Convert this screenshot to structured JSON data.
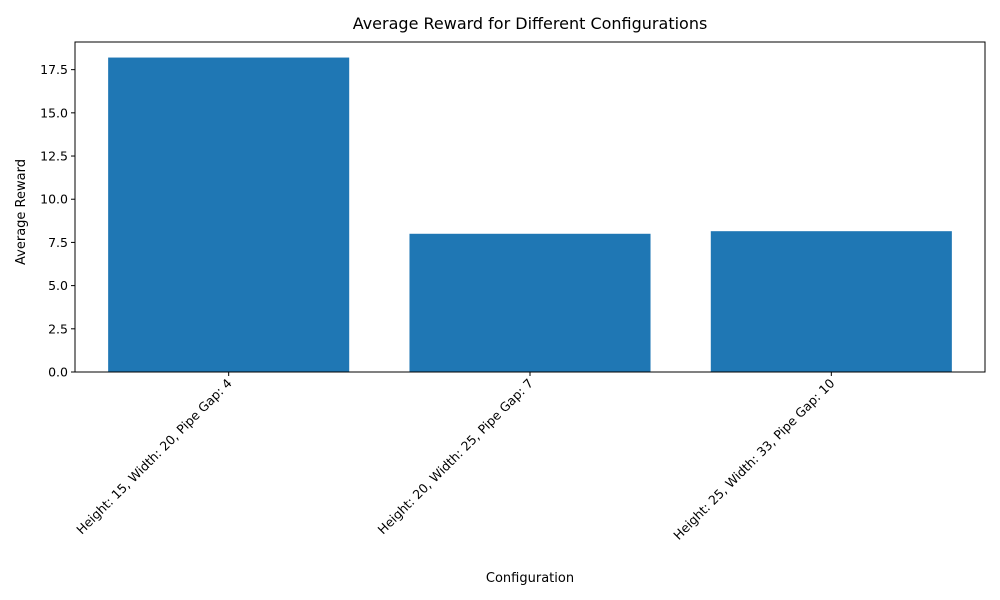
{
  "chart_data": {
    "type": "bar",
    "title": "Average Reward for Different Configurations",
    "xlabel": "Configuration",
    "ylabel": "Average Reward",
    "categories": [
      "Height: 15, Width: 20, Pipe Gap: 4",
      "Height: 20, Width: 25, Pipe Gap: 7",
      "Height: 25, Width: 33, Pipe Gap: 10"
    ],
    "values": [
      18.2,
      8.0,
      8.15
    ],
    "ylim": [
      0,
      19.1
    ],
    "yticks": [
      0.0,
      2.5,
      5.0,
      7.5,
      10.0,
      12.5,
      15.0,
      17.5
    ],
    "ytick_labels": [
      "0.0",
      "2.5",
      "5.0",
      "7.5",
      "10.0",
      "12.5",
      "15.0",
      "17.5"
    ],
    "grid": false,
    "bar_color": "#1f77b4"
  }
}
